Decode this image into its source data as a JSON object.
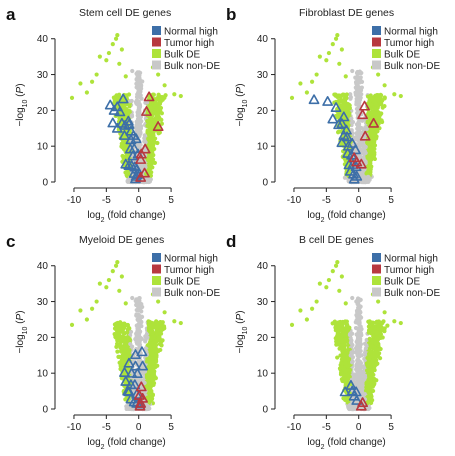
{
  "chart_data": [
    {
      "panel_letter": "a",
      "title": "Stem cell DE genes",
      "type": "scatter",
      "xlabel": "log2 (fold change)",
      "ylabel": "-log10 (P)",
      "xlim": [
        -12,
        9
      ],
      "ylim": [
        0,
        43
      ],
      "xticks": [
        -10,
        -5,
        0,
        5
      ],
      "yticks": [
        0,
        10,
        20,
        30,
        40
      ],
      "legend_position": "top-right",
      "legend": [
        {
          "label": "Normal high",
          "color": "#3d6fa8"
        },
        {
          "label": "Tumor high",
          "color": "#b8383f"
        },
        {
          "label": "Bulk DE",
          "color": "#aee33a"
        },
        {
          "label": "Bulk non-DE",
          "color": "#c8c8c8"
        }
      ],
      "series": [
        {
          "name": "Normal high",
          "marker": "triangle",
          "x": [
            -4.4,
            -3.8,
            -3.3,
            -2.9,
            -2.4,
            -4.0,
            -3.3,
            -2.6,
            -2.1,
            -1.5,
            -1.6,
            -1.2,
            -0.8,
            -2.2,
            -1.2,
            -0.4,
            -1.3,
            -0.7,
            -0.1,
            -0.9,
            -2.0,
            -1.5,
            -1.1,
            -0.6,
            -0.3,
            -0.7,
            -0.2,
            -0.4,
            -0.5
          ],
          "y": [
            21.5,
            20.0,
            21.0,
            19.6,
            23.2,
            16.5,
            15.0,
            16.4,
            15.8,
            16.1,
            17.0,
            14.2,
            13.0,
            13.0,
            11.8,
            12.1,
            9.2,
            9.3,
            7.8,
            7.3,
            5.0,
            4.6,
            4.6,
            4.2,
            3.6,
            2.4,
            2.1,
            1.6,
            0.9
          ]
        },
        {
          "name": "Tumor high",
          "marker": "triangle",
          "x": [
            1.6,
            1.2,
            3.0,
            1.0,
            0.4,
            0.3,
            0.9,
            0.3
          ],
          "y": [
            23.8,
            19.7,
            15.5,
            9.2,
            7.8,
            6.3,
            2.5,
            1.3
          ]
        }
      ]
    },
    {
      "panel_letter": "b",
      "title": "Fibroblast DE genes",
      "type": "scatter",
      "xlabel": "log2 (fold change)",
      "ylabel": "-log10 (P)",
      "xlim": [
        -12,
        9
      ],
      "ylim": [
        0,
        43
      ],
      "xticks": [
        -10,
        -5,
        0,
        5
      ],
      "yticks": [
        0,
        10,
        20,
        30,
        40
      ],
      "legend_position": "top-right",
      "legend": [
        {
          "label": "Normal high",
          "color": "#3d6fa8"
        },
        {
          "label": "Tumor high",
          "color": "#b8383f"
        },
        {
          "label": "Bulk DE",
          "color": "#aee33a"
        },
        {
          "label": "Bulk non-DE",
          "color": "#c8c8c8"
        }
      ],
      "series": [
        {
          "name": "Normal high",
          "marker": "triangle",
          "x": [
            -6.9,
            -4.8,
            -3.5,
            -4.0,
            -2.3,
            -3.1,
            -2.6,
            -1.9,
            -2.3,
            -1.8,
            -2.6,
            -1.6,
            -1.0,
            -1.7,
            -1.1,
            -0.5,
            -1.5,
            -0.9,
            -0.4,
            -1.3,
            -0.8,
            -0.3,
            -0.7
          ],
          "y": [
            23.0,
            22.5,
            20.8,
            17.6,
            18.2,
            16.0,
            16.3,
            14.5,
            13.0,
            12.6,
            11.0,
            10.0,
            10.8,
            8.0,
            7.5,
            9.0,
            4.8,
            4.9,
            4.3,
            3.0,
            2.2,
            1.6,
            0.8
          ]
        },
        {
          "name": "Tumor high",
          "marker": "triangle",
          "x": [
            0.9,
            0.6,
            2.3,
            1.0,
            -0.7,
            -0.3,
            0.4
          ],
          "y": [
            21.2,
            18.8,
            16.4,
            12.8,
            6.8,
            5.6,
            5.0
          ]
        }
      ]
    },
    {
      "panel_letter": "c",
      "title": "Myeloid DE genes",
      "type": "scatter",
      "xlabel": "log2 (fold change)",
      "ylabel": "-log10 (P)",
      "xlim": [
        -12,
        9
      ],
      "ylim": [
        0,
        43
      ],
      "xticks": [
        -10,
        -5,
        0,
        5
      ],
      "yticks": [
        0,
        10,
        20,
        30,
        40
      ],
      "legend_position": "top-right",
      "legend": [
        {
          "label": "Normal high",
          "color": "#3d6fa8"
        },
        {
          "label": "Tumor high",
          "color": "#b8383f"
        },
        {
          "label": "Bulk DE",
          "color": "#aee33a"
        },
        {
          "label": "Bulk non-DE",
          "color": "#c8c8c8"
        }
      ],
      "series": [
        {
          "name": "Normal high",
          "marker": "triangle",
          "x": [
            -0.5,
            0.5,
            -1.5,
            -0.5,
            0.6,
            -2.2,
            -1.1,
            -0.2,
            -2.0,
            -1.2,
            -0.6,
            -1.5,
            -1.7,
            -0.3,
            -1.2,
            -0.7,
            -0.3,
            0.2
          ],
          "y": [
            15.2,
            16.0,
            12.8,
            12.0,
            12.0,
            10.2,
            10.0,
            9.9,
            7.7,
            6.8,
            6.8,
            4.8,
            5.0,
            4.1,
            2.8,
            2.0,
            1.6,
            1.4
          ]
        },
        {
          "name": "Tumor high",
          "marker": "triangle",
          "x": [
            0.4,
            0.1,
            0.6,
            0.3,
            0.2
          ],
          "y": [
            6.2,
            3.8,
            3.0,
            1.6,
            0.8
          ]
        }
      ]
    },
    {
      "panel_letter": "d",
      "title": "B cell DE genes",
      "type": "scatter",
      "xlabel": "log2 (fold change)",
      "ylabel": "-log10 (P)",
      "xlim": [
        -12,
        9
      ],
      "ylim": [
        0,
        43
      ],
      "xticks": [
        -10,
        -5,
        0,
        5
      ],
      "yticks": [
        0,
        10,
        20,
        30,
        40
      ],
      "legend_position": "top-right",
      "legend": [
        {
          "label": "Normal high",
          "color": "#3d6fa8"
        },
        {
          "label": "Tumor high",
          "color": "#b8383f"
        },
        {
          "label": "Bulk DE",
          "color": "#aee33a"
        },
        {
          "label": "Bulk non-DE",
          "color": "#c8c8c8"
        }
      ],
      "series": [
        {
          "name": "Normal high",
          "marker": "triangle",
          "x": [
            -1.2,
            -2.1,
            -1.0,
            -0.4,
            -0.7,
            -0.3
          ],
          "y": [
            6.6,
            4.8,
            5.0,
            4.8,
            3.6,
            2.4
          ]
        },
        {
          "name": "Tumor high",
          "marker": "triangle",
          "x": [
            0.6,
            0.4
          ],
          "y": [
            1.8,
            0.8
          ]
        }
      ]
    }
  ]
}
